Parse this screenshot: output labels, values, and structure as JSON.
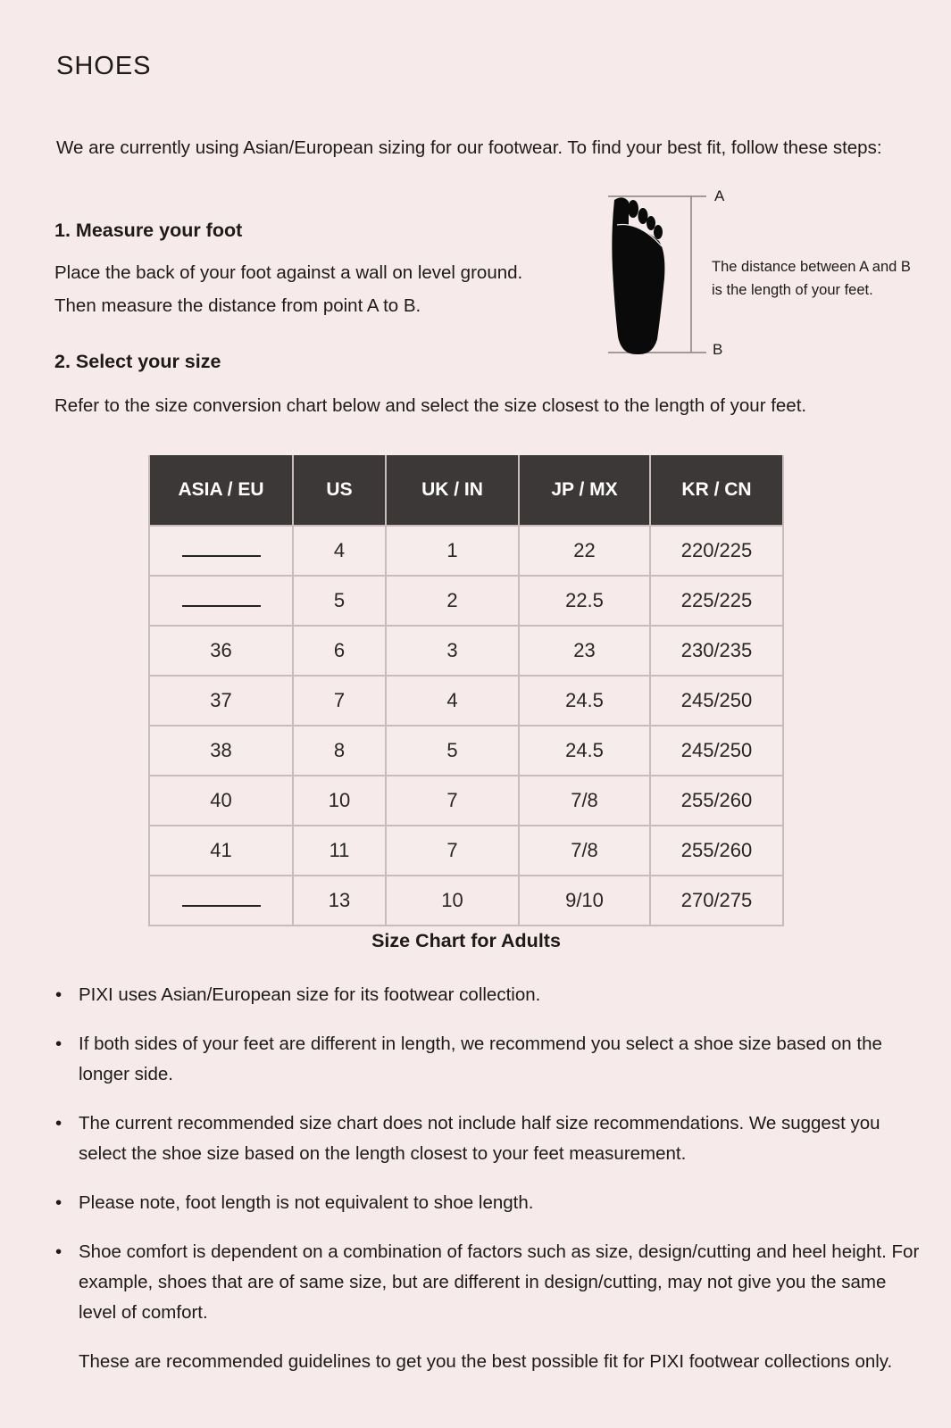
{
  "title": "SHOES",
  "intro": "We are currently using Asian/European sizing for our footwear. To find your best fit, follow these steps:",
  "step1": {
    "heading": "1. Measure your foot",
    "lines": [
      "Place the back of your foot against a wall on level ground.",
      "Then measure the distance from point A to B."
    ]
  },
  "diagram": {
    "label_a": "A",
    "label_b": "B",
    "text": "The distance between A and B is the length of your feet.",
    "icon": "foot-icon"
  },
  "step2": {
    "heading": "2. Select your size",
    "text": "Refer to the size conversion chart below and select the size closest to the length of your feet."
  },
  "table": {
    "headers": [
      "ASIA / EU",
      "US",
      "UK / IN",
      "JP / MX",
      "KR / CN"
    ],
    "rows": [
      [
        "",
        "4",
        "1",
        "22",
        "220/225"
      ],
      [
        "",
        "5",
        "2",
        "22.5",
        "225/225"
      ],
      [
        "36",
        "6",
        "3",
        "23",
        "230/235"
      ],
      [
        "37",
        "7",
        "4",
        "24.5",
        "245/250"
      ],
      [
        "38",
        "8",
        "5",
        "24.5",
        "245/250"
      ],
      [
        "40",
        "10",
        "7",
        "7/8",
        "255/260"
      ],
      [
        "41",
        "11",
        "7",
        "7/8",
        "255/260"
      ],
      [
        "",
        "13",
        "10",
        "9/10",
        "270/275"
      ]
    ],
    "caption": "Size Chart for Adults"
  },
  "notes": [
    "PIXI uses Asian/European size for its footwear collection.",
    "If both sides of your feet are different in length, we recommend you select a shoe size based on the longer side.",
    "The current recommended size chart does not include half size recommendations. We suggest you select the shoe size based on the length closest to your feet measurement.",
    "Please note, foot length is not equivalent to shoe length.",
    "Shoe comfort is dependent on a combination of factors such as size, design/cutting and heel height. For example, shoes that are of same size, but are different in design/cutting, may not give you the same level of comfort."
  ],
  "footer": "These are recommended guidelines to get you the best possible fit for  PIXI footwear collections only."
}
